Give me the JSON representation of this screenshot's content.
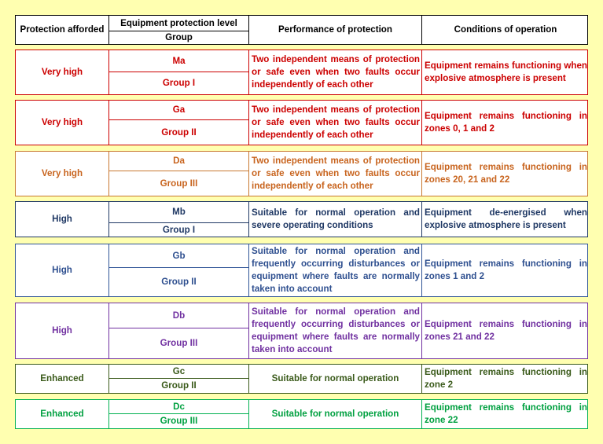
{
  "header": {
    "protection": "Protection afforded",
    "epl": "Equipment protection level",
    "group": "Group",
    "performance": "Performance of protection",
    "conditions": "Conditions of operation"
  },
  "rows": [
    {
      "protection": "Very high",
      "epl": "Ma",
      "group": "Group I",
      "performance": "Two independent means of protection or safe even when two faults occur independently of each other",
      "conditions": "Equipment remains functioning when explosive atmosphere is present"
    },
    {
      "protection": "Very high",
      "epl": "Ga",
      "group": "Group II",
      "performance": "Two independent means of protection or safe even when two faults occur independently of each other",
      "conditions": "Equipment remains functioning in zones 0, 1 and 2"
    },
    {
      "protection": "Very high",
      "epl": "Da",
      "group": "Group III",
      "performance": "Two independent means of protection or safe even when two faults occur independently of each other",
      "conditions": "Equipment remains functioning in zones 20, 21 and 22"
    },
    {
      "protection": "High",
      "epl": "Mb",
      "group": "Group I",
      "performance": "Suitable for normal operation and severe operating conditions",
      "conditions": "Equipment de-energised when explosive atmosphere is present"
    },
    {
      "protection": "High",
      "epl": "Gb",
      "group": "Group II",
      "performance": "Suitable for normal operation and frequently occurring disturbances or equipment where faults are normally taken into account",
      "conditions": "Equipment remains functioning in zones 1 and 2"
    },
    {
      "protection": "High",
      "epl": "Db",
      "group": "Group III",
      "performance": "Suitable for normal operation and frequently occurring disturbances or equipment where faults are normally taken into account",
      "conditions": "Equipment remains functioning in zones 21 and 22"
    },
    {
      "protection": "Enhanced",
      "epl": "Gc",
      "group": "Group II",
      "performance": "Suitable for normal operation",
      "conditions": "Equipment remains functioning in zone 2"
    },
    {
      "protection": "Enhanced",
      "epl": "Dc",
      "group": "Group III",
      "performance": "Suitable for normal operation",
      "conditions": "Equipment remains functioning in zone 22"
    }
  ]
}
